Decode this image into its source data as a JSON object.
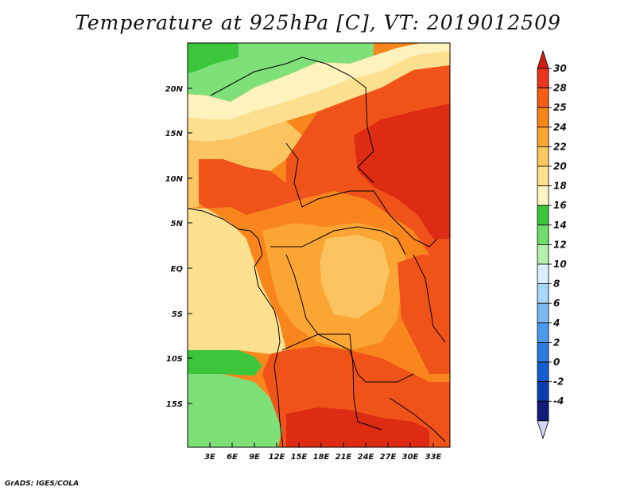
{
  "title": "Temperature at 925hPa [C], VT: 2019012509",
  "credit": "GrADS: IGES/COLA",
  "lat_ticks": [
    "20N",
    "15N",
    "10N",
    "5N",
    "EQ",
    "5S",
    "10S",
    "15S"
  ],
  "lon_ticks": [
    "3E",
    "6E",
    "9E",
    "12E",
    "15E",
    "18E",
    "21E",
    "24E",
    "27E",
    "30E",
    "33E"
  ],
  "colorbar": {
    "labels": [
      "30",
      "28",
      "25",
      "24",
      "22",
      "20",
      "18",
      "16",
      "14",
      "12",
      "10",
      "8",
      "6",
      "4",
      "2",
      "0",
      "-2",
      "-4"
    ],
    "colors": [
      "#e8351c",
      "#f45e14",
      "#f98618",
      "#fba532",
      "#fcc75e",
      "#fde08f",
      "#fff5c2",
      "#3cc63c",
      "#6fdc6c",
      "#b3f0ae",
      "#d9efff",
      "#a9d6fb",
      "#7ab9f4",
      "#4d9aec",
      "#2b7be0",
      "#155dcf",
      "#0a3daf",
      "#101a7a"
    ],
    "cap_top_color": "#cf1f12",
    "cap_bottom_color": "#d6d6f6"
  },
  "map": {
    "colors": {
      "hot": "#dd2b14",
      "warm": "#f0531a",
      "mid": "#f9861d",
      "mild": "#fba534",
      "cool": "#fcc460",
      "pale": "#fde08f",
      "cream": "#fff3bd",
      "green_light": "#7fe07a",
      "green": "#3cc63c",
      "border": "#000000"
    }
  }
}
